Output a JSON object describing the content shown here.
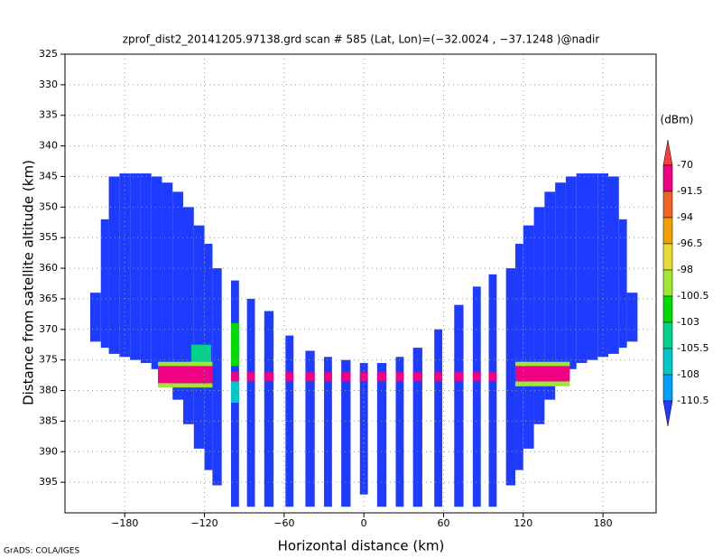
{
  "chart_data": {
    "type": "heatmap",
    "title": "zprof_dist2_20141205.97138.grd  scan # 585  (Lat, Lon)=(−32.0024 , −37.1248 )@nadir",
    "xlabel": "Horizontal distance (km)",
    "ylabel": "Distance from satellite altitude (km)",
    "footer": "GrADS: COLA/IGES",
    "xlim": [
      -225,
      220
    ],
    "ylim": [
      325,
      400
    ],
    "grid": true,
    "xticks": [
      {
        "value": -180,
        "label": "−180"
      },
      {
        "value": -120,
        "label": "−120"
      },
      {
        "value": -60,
        "label": "−60"
      },
      0,
      60,
      120,
      180
    ],
    "yticks": [
      325,
      330,
      335,
      340,
      345,
      350,
      355,
      360,
      365,
      370,
      375,
      380,
      385,
      390,
      395
    ],
    "colorbar": {
      "label": "(dBm)",
      "levels": [
        -70,
        -91.5,
        -94,
        -96.5,
        -98,
        -100.5,
        -103,
        -105.5,
        -108,
        -110.5
      ],
      "colors": [
        "#fa3c3c",
        "#f00082",
        "#f06428",
        "#f0a000",
        "#e6dc32",
        "#a0e632",
        "#00dc00",
        "#00d28c",
        "#00c8c8",
        "#00a0ff",
        "#1e3cff"
      ]
    },
    "regions": [
      {
        "x": [
          -206,
          -198
        ],
        "y": [
          364,
          372
        ],
        "value": -115
      },
      {
        "x": [
          -198,
          -192
        ],
        "y": [
          352,
          373
        ],
        "value": -115
      },
      {
        "x": [
          -192,
          -184
        ],
        "y": [
          345,
          374
        ],
        "value": -115
      },
      {
        "x": [
          -184,
          -176
        ],
        "y": [
          344.5,
          374.5
        ],
        "value": -115
      },
      {
        "x": [
          -176,
          -168
        ],
        "y": [
          344.5,
          375
        ],
        "value": -115
      },
      {
        "x": [
          -168,
          -160
        ],
        "y": [
          344.5,
          375.5
        ],
        "value": -115
      },
      {
        "x": [
          -160,
          -152
        ],
        "y": [
          345,
          376.5
        ],
        "value": -115
      },
      {
        "x": [
          -152,
          -144
        ],
        "y": [
          346,
          378.5
        ],
        "value": -115
      },
      {
        "x": [
          -144,
          -136
        ],
        "y": [
          347.5,
          381.5
        ],
        "value": -115
      },
      {
        "x": [
          -136,
          -128
        ],
        "y": [
          350,
          385.5
        ],
        "value": -115
      },
      {
        "x": [
          -128,
          -120
        ],
        "y": [
          353,
          389.5
        ],
        "value": -115
      },
      {
        "x": [
          -120,
          -114
        ],
        "y": [
          356,
          393
        ],
        "value": -115
      },
      {
        "x": [
          -114,
          -107
        ],
        "y": [
          360,
          395.5
        ],
        "value": -115
      },
      {
        "x": [
          -100,
          -94
        ],
        "y": [
          362,
          399
        ],
        "value": -115
      },
      {
        "x": [
          -88,
          -82
        ],
        "y": [
          365,
          399
        ],
        "value": -115
      },
      {
        "x": [
          -75,
          -68
        ],
        "y": [
          367,
          399
        ],
        "value": -115
      },
      {
        "x": [
          -59,
          -53
        ],
        "y": [
          371,
          399
        ],
        "value": -115
      },
      {
        "x": [
          -44,
          -37
        ],
        "y": [
          373.5,
          399
        ],
        "value": -115
      },
      {
        "x": [
          -30,
          -24
        ],
        "y": [
          374.5,
          399
        ],
        "value": -115
      },
      {
        "x": [
          -17,
          -10
        ],
        "y": [
          375,
          399
        ],
        "value": -115
      },
      {
        "x": [
          -3,
          3
        ],
        "y": [
          375.5,
          397
        ],
        "value": -115
      },
      {
        "x": [
          10,
          17
        ],
        "y": [
          375.5,
          399
        ],
        "value": -115
      },
      {
        "x": [
          24,
          30
        ],
        "y": [
          374.5,
          399
        ],
        "value": -115
      },
      {
        "x": [
          37,
          44
        ],
        "y": [
          373,
          399
        ],
        "value": -115
      },
      {
        "x": [
          53,
          59
        ],
        "y": [
          370,
          399
        ],
        "value": -115
      },
      {
        "x": [
          68,
          75
        ],
        "y": [
          366,
          399
        ],
        "value": -115
      },
      {
        "x": [
          82,
          88
        ],
        "y": [
          363,
          399
        ],
        "value": -115
      },
      {
        "x": [
          94,
          100
        ],
        "y": [
          361,
          399
        ],
        "value": -115
      },
      {
        "x": [
          107,
          114
        ],
        "y": [
          360,
          395.5
        ],
        "value": -115
      },
      {
        "x": [
          114,
          120
        ],
        "y": [
          356,
          393
        ],
        "value": -115
      },
      {
        "x": [
          120,
          128
        ],
        "y": [
          353,
          389.5
        ],
        "value": -115
      },
      {
        "x": [
          128,
          136
        ],
        "y": [
          350,
          385.5
        ],
        "value": -115
      },
      {
        "x": [
          136,
          144
        ],
        "y": [
          347.5,
          381.5
        ],
        "value": -115
      },
      {
        "x": [
          144,
          152
        ],
        "y": [
          346,
          378.5
        ],
        "value": -115
      },
      {
        "x": [
          152,
          160
        ],
        "y": [
          345,
          376.5
        ],
        "value": -115
      },
      {
        "x": [
          160,
          168
        ],
        "y": [
          344.5,
          375.5
        ],
        "value": -115
      },
      {
        "x": [
          168,
          176
        ],
        "y": [
          344.5,
          375
        ],
        "value": -115
      },
      {
        "x": [
          176,
          184
        ],
        "y": [
          344.5,
          374.5
        ],
        "value": -115
      },
      {
        "x": [
          184,
          192
        ],
        "y": [
          345,
          374
        ],
        "value": -115
      },
      {
        "x": [
          192,
          198
        ],
        "y": [
          352,
          373
        ],
        "value": -115
      },
      {
        "x": [
          198,
          206
        ],
        "y": [
          364,
          372
        ],
        "value": -115
      },
      {
        "x": [
          -130,
          -115
        ],
        "y": [
          372.5,
          375.5
        ],
        "value": -104
      },
      {
        "x": [
          -155,
          -114
        ],
        "y": [
          375.3,
          376
        ],
        "value": -99
      },
      {
        "x": [
          -155,
          -114
        ],
        "y": [
          378.8,
          379.5
        ],
        "value": -99
      },
      {
        "x": [
          114,
          155
        ],
        "y": [
          375.3,
          376
        ],
        "value": -99
      },
      {
        "x": [
          114,
          155
        ],
        "y": [
          378.5,
          379.3
        ],
        "value": -99
      },
      {
        "x": [
          -100,
          -94
        ],
        "y": [
          369,
          376
        ],
        "value": -101
      },
      {
        "x": [
          -100,
          -94
        ],
        "y": [
          378.5,
          382
        ],
        "value": -107
      },
      {
        "x": [
          -155,
          -114
        ],
        "y": [
          376,
          378.8
        ],
        "value": -80
      },
      {
        "x": [
          114,
          155
        ],
        "y": [
          376,
          378.5
        ],
        "value": -80
      },
      {
        "x": [
          -100,
          -94
        ],
        "y": [
          377,
          378.5
        ],
        "value": -85
      },
      {
        "x": [
          -88,
          -82
        ],
        "y": [
          377,
          378.5
        ],
        "value": -85
      },
      {
        "x": [
          -75,
          -68
        ],
        "y": [
          377,
          378.5
        ],
        "value": -85
      },
      {
        "x": [
          -59,
          -53
        ],
        "y": [
          377,
          378.5
        ],
        "value": -85
      },
      {
        "x": [
          -44,
          -37
        ],
        "y": [
          377,
          378.5
        ],
        "value": -85
      },
      {
        "x": [
          -30,
          -24
        ],
        "y": [
          377,
          378.5
        ],
        "value": -85
      },
      {
        "x": [
          -17,
          -10
        ],
        "y": [
          377,
          378.5
        ],
        "value": -85
      },
      {
        "x": [
          -3,
          3
        ],
        "y": [
          377,
          378.5
        ],
        "value": -85
      },
      {
        "x": [
          10,
          17
        ],
        "y": [
          377,
          378.5
        ],
        "value": -85
      },
      {
        "x": [
          24,
          30
        ],
        "y": [
          377,
          378.5
        ],
        "value": -85
      },
      {
        "x": [
          37,
          44
        ],
        "y": [
          377,
          378.5
        ],
        "value": -85
      },
      {
        "x": [
          53,
          59
        ],
        "y": [
          377,
          378.5
        ],
        "value": -85
      },
      {
        "x": [
          68,
          75
        ],
        "y": [
          377,
          378.5
        ],
        "value": -85
      },
      {
        "x": [
          82,
          88
        ],
        "y": [
          377,
          378.5
        ],
        "value": -85
      },
      {
        "x": [
          94,
          100
        ],
        "y": [
          377,
          378.5
        ],
        "value": -85
      }
    ]
  }
}
